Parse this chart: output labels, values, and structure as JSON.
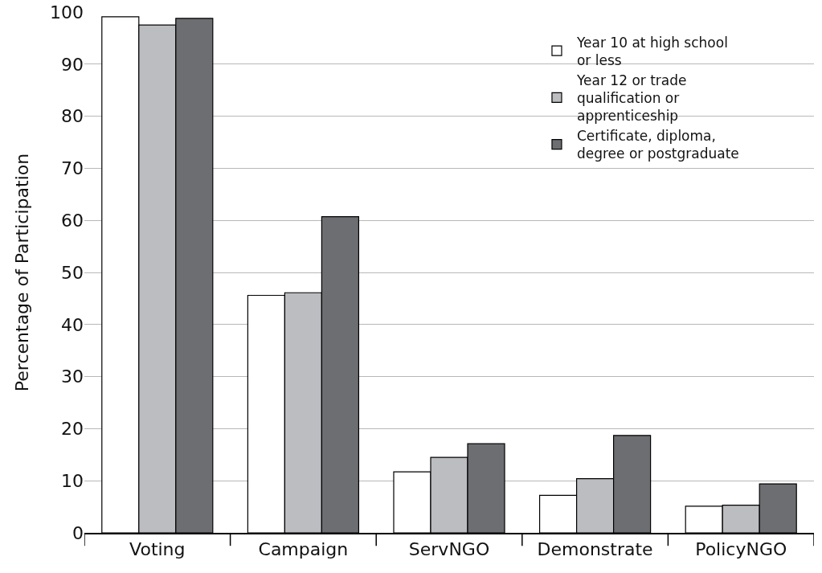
{
  "chart_data": {
    "type": "bar",
    "ylabel": "Percentage of Participation",
    "categories": [
      "Voting",
      "Campaign",
      "ServNGO",
      "Demonstrate",
      "PolicyNGO"
    ],
    "series": [
      {
        "name": "Year 10 at high school or less",
        "color": "#ffffff",
        "values": [
          99.1,
          45.6,
          11.7,
          7.2,
          5.1
        ]
      },
      {
        "name": "Year 12 or trade qualification or apprenticeship",
        "color": "#bcbdc1",
        "values": [
          97.5,
          46.1,
          14.5,
          10.4,
          5.3
        ]
      },
      {
        "name": "Certificate, diploma, degree or postgraduate",
        "color": "#6d6e72",
        "values": [
          98.8,
          60.7,
          17.1,
          18.7,
          9.4
        ]
      }
    ],
    "ylim": [
      0,
      100
    ],
    "yticks": [
      0,
      10,
      20,
      30,
      40,
      50,
      60,
      70,
      80,
      90,
      100
    ],
    "grid": "y",
    "legend": "top right"
  }
}
